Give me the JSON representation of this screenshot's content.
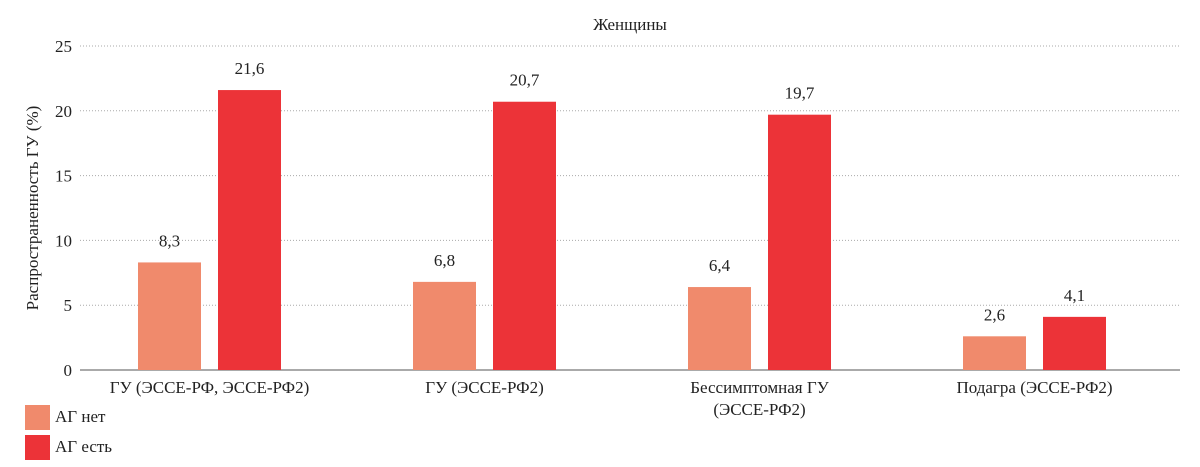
{
  "chart_data": {
    "type": "bar",
    "title": "Женщины",
    "ylabel": "Распространенность ГУ (%)",
    "xlabel": "",
    "ylim": [
      0,
      25
    ],
    "yticks": [
      0,
      5,
      10,
      15,
      20,
      25
    ],
    "grid": true,
    "legend_position": "bottom-left",
    "categories": [
      [
        "ГУ (ЭССЕ-РФ, ЭССЕ-РФ2)"
      ],
      [
        "ГУ (ЭССЕ-РФ2)"
      ],
      [
        "Бессимптомная ГУ",
        "(ЭССЕ-РФ2)"
      ],
      [
        "Подагра (ЭССЕ-РФ2)"
      ]
    ],
    "series": [
      {
        "name": "АГ нет",
        "color": "#f08a6c",
        "values": [
          8.3,
          6.8,
          6.4,
          2.6
        ],
        "labels": [
          "8,3",
          "6,8",
          "6,4",
          "2,6"
        ]
      },
      {
        "name": "АГ есть",
        "color": "#ec3338",
        "values": [
          21.6,
          20.7,
          19.7,
          4.1
        ],
        "labels": [
          "21,6",
          "20,7",
          "19,7",
          "4,1"
        ]
      }
    ]
  }
}
